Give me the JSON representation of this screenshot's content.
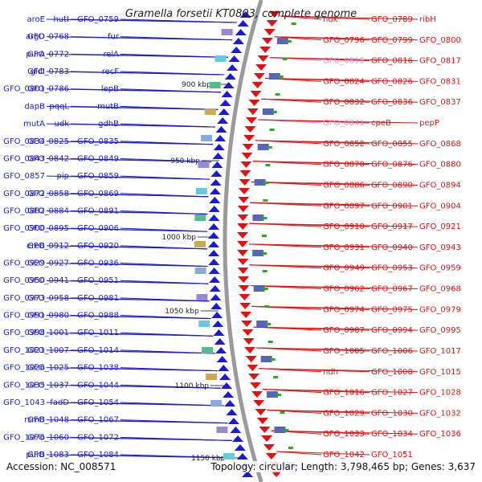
{
  "title": "Gramella forsetii KT0803, complete genome",
  "accession": "Accession: NC_008571",
  "topology": "Topology: circular; Length: 3,798,465 bp; Genes: 3,637",
  "colors": {
    "forward_strand": "#1a1ad8",
    "reverse_strand": "#e21212",
    "highlight_label": "#f08ad0",
    "backbone": "#9a9a9a"
  },
  "kbp_ticks": [
    "900 kbp",
    "950 kbp",
    "1000 kbp",
    "1050 kbp",
    "1100 kbp",
    "1150 kbp"
  ],
  "left_labels": [
    "hutI",
    "aroE",
    "GFO_0759",
    "GFO_0768",
    "argD",
    "fur",
    "GFO_0772",
    "purA",
    "relA",
    "GFO_0783",
    "gldI",
    "recF",
    "GFO_0786",
    "GFO_0801",
    "lepB",
    "pqqL",
    "dapB",
    "mutB",
    "udk",
    "mutA",
    "gdhB",
    "GFO_0825",
    "GFO_0834",
    "GFO_0835",
    "GFO_0842",
    "GFO_0843",
    "GFO_0849",
    "pip",
    "GFO_0857",
    "GFO_0859",
    "GFO_0858",
    "GFO_0872",
    "GFO_0869",
    "GFO_0884",
    "GFO_0882",
    "GFO_0891",
    "GFO_0895",
    "GFO_0900",
    "GFO_0906",
    "GFO_0912",
    "ereB",
    "GFO_0920",
    "GFO_0927",
    "GFO_0929",
    "GFO_0936",
    "GFO_0941",
    "GFO_0950",
    "GFO_0951",
    "GFO_0958",
    "GFO_0973",
    "GFO_0981",
    "GFO_0980",
    "GFO_0991",
    "GFO_0988",
    "GFO_1001",
    "GFO_0998",
    "GFO_1011",
    "GFO_1007",
    "GFO_1021",
    "GFO_1014",
    "GFO_1025",
    "GFO_1026",
    "GFO_1038",
    "GFO_1037",
    "GFO_1035",
    "GFO_1044",
    "fadD",
    "GFO_1043",
    "GFO_1054",
    "GFO_1048",
    "rsmB",
    "GFO_1067",
    "GFO_1060",
    "GFO_1076",
    "GFO_1072",
    "GFO_1083",
    "purB",
    "GFO_1084"
  ],
  "right_labels": [
    "ndk",
    "GFO_0789",
    "ribH",
    "GFO_0796",
    "GFO_0799",
    "GFO_0800",
    "GFO_0815",
    "GFO_0816",
    "GFO_0817",
    "GFO_0824",
    "GFO_0826",
    "GFO_0831",
    "GFO_0832",
    "GFO_0836",
    "GFO_0837",
    "GFO_0841",
    "cpeB",
    "pepP",
    "GFO_0852",
    "GFO_0855",
    "GFO_0868",
    "GFO_0870",
    "GFO_0876",
    "GFO_0880",
    "GFO_0886",
    "GFO_0890",
    "GFO_0894",
    "GFO_0897",
    "GFO_0901",
    "GFO_0904",
    "GFO_0910",
    "GFO_0917",
    "GFO_0921",
    "GFO_0931",
    "GFO_0940",
    "GFO_0943",
    "GFO_0949",
    "GFO_0953",
    "GFO_0959",
    "GFO_0962",
    "GFO_0967",
    "GFO_0968",
    "GFO_0974",
    "GFO_0975",
    "GFO_0979",
    "GFO_0987",
    "GFO_0994",
    "GFO_0995",
    "GFO_1005",
    "GFO_1006",
    "GFO_1017",
    "ndh",
    "GFO_1008",
    "GFO_1015",
    "GFO_1016",
    "GFO_1027",
    "GFO_1028",
    "GFO_1029",
    "GFO_1030",
    "GFO_1032",
    "GFO_1033",
    "GFO_1034",
    "GFO_1036",
    "GFO_1042",
    "GFO_1051"
  ]
}
